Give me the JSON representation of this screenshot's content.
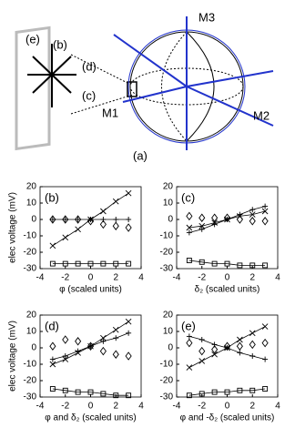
{
  "diagram": {
    "panel_labels": [
      "(e)",
      "(b)",
      "(d)",
      "(c)"
    ],
    "axes": [
      "M1",
      "M2",
      "M3"
    ],
    "caption": "(a)"
  },
  "chart_data": [
    {
      "type": "scatter",
      "label": "(b)",
      "x": [
        -3,
        -2,
        -1,
        0,
        1,
        2,
        3
      ],
      "series": [
        {
          "marker": "x",
          "color": "#000000",
          "line": true,
          "values": [
            -16,
            -11,
            -6,
            0,
            5,
            11,
            16
          ]
        },
        {
          "marker": "+",
          "color": "#000000",
          "line": true,
          "values": [
            0,
            0,
            0,
            0,
            0,
            0,
            0
          ]
        },
        {
          "marker": "diamond",
          "color": "#000000",
          "line": false,
          "values": [
            0,
            0,
            0,
            -1,
            -3,
            -4,
            -5
          ]
        },
        {
          "marker": "square",
          "color": "#000000",
          "line": true,
          "values": [
            -27,
            -27,
            -27,
            -27,
            -27,
            -27,
            -27
          ]
        }
      ],
      "xlim": [
        -4,
        4
      ],
      "xticks": [
        -4,
        -2,
        0,
        2,
        4
      ],
      "ylim": [
        -30,
        20
      ],
      "yticks": [
        -30,
        -20,
        -10,
        0,
        10,
        20
      ],
      "xlabel": "φ (scaled units)",
      "ylabel": "elec voltage (mV)"
    },
    {
      "type": "scatter",
      "label": "(c)",
      "x": [
        -3,
        -2,
        -1,
        0,
        1,
        2,
        3
      ],
      "series": [
        {
          "marker": "x",
          "color": "#000000",
          "line": true,
          "values": [
            -5,
            -4,
            -2,
            0,
            2,
            3,
            5
          ]
        },
        {
          "marker": "+",
          "color": "#000000",
          "line": true,
          "values": [
            -8,
            -6,
            -3,
            0,
            3,
            6,
            8
          ]
        },
        {
          "marker": "diamond",
          "color": "#000000",
          "line": false,
          "values": [
            2,
            1,
            1,
            1,
            0,
            -1,
            -1
          ]
        },
        {
          "marker": "square",
          "color": "#000000",
          "line": true,
          "values": [
            -25,
            -26,
            -27,
            -27,
            -28,
            -28,
            -28
          ]
        }
      ],
      "xlim": [
        -4,
        4
      ],
      "xticks": [
        -4,
        -2,
        0,
        2,
        4
      ],
      "ylim": [
        -30,
        20
      ],
      "yticks": [
        -30,
        -20,
        -10,
        0,
        10,
        20
      ],
      "xlabel": "δ₂ (scaled units)"
    },
    {
      "type": "scatter",
      "label": "(d)",
      "x": [
        -3,
        -2,
        -1,
        0,
        1,
        2,
        3
      ],
      "series": [
        {
          "marker": "x",
          "color": "#000000",
          "line": true,
          "values": [
            -10,
            -7,
            -3,
            1,
            6,
            11,
            16
          ]
        },
        {
          "marker": "+",
          "color": "#000000",
          "line": true,
          "values": [
            -7,
            -5,
            -2,
            1,
            4,
            6,
            9
          ]
        },
        {
          "marker": "diamond",
          "color": "#000000",
          "line": false,
          "values": [
            1,
            5,
            4,
            1,
            -2,
            -4,
            -5
          ]
        },
        {
          "marker": "square",
          "color": "#000000",
          "line": true,
          "values": [
            -25,
            -26,
            -27,
            -27,
            -28,
            -29,
            -29
          ]
        }
      ],
      "xlim": [
        -4,
        4
      ],
      "xticks": [
        -4,
        -2,
        0,
        2,
        4
      ],
      "ylim": [
        -30,
        20
      ],
      "yticks": [
        -30,
        -20,
        -10,
        0,
        10,
        20
      ],
      "xlabel": "φ and δ₂ (scaled units)",
      "ylabel": "elec voltage (mV)"
    },
    {
      "type": "scatter",
      "label": "(e)",
      "x": [
        -3,
        -2,
        -1,
        0,
        1,
        2,
        3
      ],
      "series": [
        {
          "marker": "x",
          "color": "#000000",
          "line": true,
          "values": [
            -12,
            -8,
            -4,
            0,
            5,
            9,
            13
          ]
        },
        {
          "marker": "+",
          "color": "#000000",
          "line": true,
          "values": [
            7,
            5,
            2,
            0,
            -3,
            -5,
            -7
          ]
        },
        {
          "marker": "diamond",
          "color": "#000000",
          "line": false,
          "values": [
            3,
            -2,
            -1,
            1,
            1,
            2,
            3
          ]
        },
        {
          "marker": "square",
          "color": "#000000",
          "line": true,
          "values": [
            -29,
            -28,
            -27,
            -27,
            -26,
            -26,
            -25
          ]
        }
      ],
      "xlim": [
        -4,
        4
      ],
      "xticks": [
        -4,
        -2,
        0,
        2,
        4
      ],
      "ylim": [
        -30,
        20
      ],
      "yticks": [
        -30,
        -20,
        -10,
        0,
        10,
        20
      ],
      "xlabel": "φ and -δ₂ (scaled units)"
    }
  ]
}
